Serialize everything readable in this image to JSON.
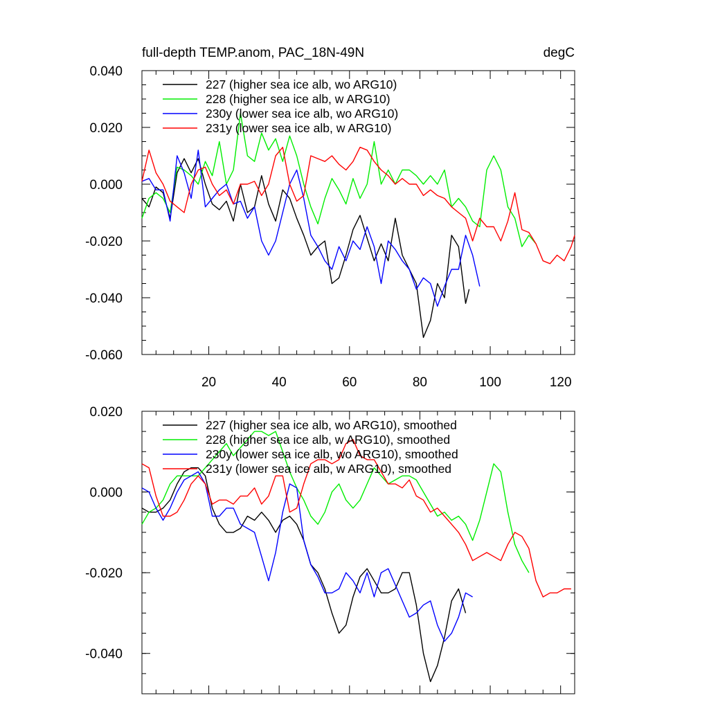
{
  "chart_data": [
    {
      "type": "line",
      "title": "full-depth TEMP.anom, PAC_18N-49N",
      "units": "degC",
      "xlim": [
        1,
        124
      ],
      "ylim": [
        -0.06,
        0.04
      ],
      "yticks": [
        -0.06,
        -0.04,
        -0.02,
        0.0,
        0.02,
        0.04
      ],
      "ytick_labels": [
        "-0.060",
        "-0.040",
        "-0.020",
        "0.000",
        "0.020",
        "0.040"
      ],
      "xticks": [
        20,
        40,
        60,
        80,
        100,
        120
      ],
      "xtick_labels": [
        "20",
        "40",
        "60",
        "80",
        "100",
        "120"
      ],
      "grid": false,
      "legend_position": "top-left",
      "series": [
        {
          "name": "227 (higher sea ice alb, wo ARG10)",
          "color": "#000000",
          "x": [
            1,
            3,
            5,
            7,
            9,
            11,
            13,
            15,
            17,
            19,
            21,
            23,
            25,
            27,
            29,
            31,
            33,
            35,
            37,
            39,
            41,
            43,
            45,
            47,
            49,
            51,
            53,
            55,
            57,
            59,
            61,
            63,
            65,
            67,
            69,
            71,
            73,
            75,
            77,
            79,
            81,
            83,
            85,
            87,
            89,
            91,
            93,
            94
          ],
          "y": [
            -0.005,
            -0.008,
            -0.001,
            -0.003,
            -0.012,
            0.004,
            0.009,
            0.004,
            0.009,
            0.0,
            -0.007,
            -0.009,
            -0.006,
            -0.013,
            0.0,
            -0.01,
            -0.008,
            0.003,
            -0.007,
            -0.013,
            -0.002,
            -0.005,
            -0.012,
            -0.018,
            -0.025,
            -0.022,
            -0.02,
            -0.035,
            -0.033,
            -0.025,
            -0.016,
            -0.011,
            -0.019,
            -0.027,
            -0.021,
            -0.027,
            -0.012,
            -0.025,
            -0.03,
            -0.035,
            -0.054,
            -0.048,
            -0.035,
            -0.04,
            -0.018,
            -0.022,
            -0.042,
            -0.037
          ]
        },
        {
          "name": "228 (higher sea ice alb, w ARG10)",
          "color": "#00ee00",
          "x": [
            1,
            3,
            5,
            7,
            9,
            11,
            13,
            15,
            17,
            19,
            21,
            23,
            25,
            27,
            29,
            31,
            33,
            35,
            37,
            39,
            41,
            43,
            45,
            47,
            49,
            51,
            53,
            55,
            57,
            59,
            61,
            63,
            65,
            67,
            69,
            71,
            73,
            75,
            77,
            79,
            81,
            83,
            85,
            87,
            89,
            91,
            93,
            95,
            97,
            99,
            101,
            103,
            105,
            107,
            109,
            111,
            113
          ],
          "y": [
            -0.012,
            -0.005,
            -0.003,
            -0.005,
            -0.01,
            0.006,
            0.005,
            0.003,
            0.0,
            0.008,
            0.003,
            0.015,
            0.0,
            0.005,
            0.025,
            0.01,
            0.008,
            0.018,
            0.012,
            0.016,
            0.008,
            0.017,
            0.01,
            0.0,
            -0.008,
            -0.014,
            -0.005,
            0.002,
            -0.002,
            -0.007,
            0.002,
            -0.005,
            0.0,
            0.015,
            0.0,
            0.005,
            0.0,
            0.005,
            0.005,
            0.003,
            0.0,
            0.003,
            0.0,
            0.005,
            -0.008,
            -0.005,
            -0.008,
            -0.013,
            -0.015,
            0.005,
            0.01,
            0.005,
            -0.008,
            -0.012,
            -0.022,
            -0.018,
            -0.021
          ]
        },
        {
          "name": "230y (lower sea ice alb, wo ARG10)",
          "color": "#0000ff",
          "x": [
            1,
            3,
            5,
            7,
            9,
            11,
            13,
            15,
            17,
            19,
            21,
            23,
            25,
            27,
            29,
            31,
            33,
            35,
            37,
            39,
            41,
            43,
            45,
            47,
            49,
            51,
            53,
            55,
            57,
            59,
            61,
            63,
            65,
            67,
            69,
            71,
            73,
            75,
            77,
            79,
            81,
            83,
            85,
            87,
            89,
            91,
            93,
            95,
            97
          ],
          "y": [
            0.001,
            0.002,
            -0.002,
            -0.002,
            -0.013,
            0.01,
            0.004,
            -0.005,
            0.012,
            -0.008,
            -0.005,
            -0.002,
            0.0,
            -0.007,
            -0.006,
            -0.012,
            -0.008,
            -0.02,
            -0.025,
            -0.02,
            -0.01,
            0.0,
            0.005,
            -0.005,
            -0.018,
            -0.022,
            -0.027,
            -0.03,
            -0.022,
            -0.027,
            -0.02,
            -0.023,
            -0.015,
            -0.022,
            -0.035,
            -0.02,
            -0.023,
            -0.027,
            -0.03,
            -0.037,
            -0.033,
            -0.035,
            -0.043,
            -0.036,
            -0.03,
            -0.03,
            -0.018,
            -0.025,
            -0.036
          ]
        },
        {
          "name": "231y (lower sea ice alb, w ARG10)",
          "color": "#ff0000",
          "x": [
            1,
            3,
            5,
            7,
            9,
            11,
            13,
            15,
            17,
            19,
            21,
            23,
            25,
            27,
            29,
            31,
            33,
            35,
            37,
            39,
            41,
            43,
            45,
            47,
            49,
            51,
            53,
            55,
            57,
            59,
            61,
            63,
            65,
            67,
            69,
            71,
            73,
            75,
            77,
            79,
            81,
            83,
            85,
            87,
            89,
            91,
            93,
            95,
            97,
            99,
            101,
            103,
            105,
            107,
            109,
            111,
            113,
            115,
            117,
            119,
            121,
            123,
            124
          ],
          "y": [
            0.001,
            0.012,
            0.004,
            0.0,
            -0.006,
            -0.008,
            -0.01,
            0.0,
            0.005,
            0.006,
            0.0,
            -0.004,
            -0.002,
            -0.007,
            0.0,
            0.0,
            0.001,
            -0.004,
            0.0,
            0.01,
            0.013,
            0.0,
            -0.006,
            -0.004,
            0.01,
            0.009,
            0.008,
            0.01,
            0.007,
            0.005,
            0.008,
            0.013,
            0.012,
            0.008,
            0.005,
            0.003,
            0.0,
            0.002,
            0.0,
            0.0,
            -0.004,
            -0.002,
            -0.004,
            -0.005,
            -0.008,
            -0.01,
            -0.012,
            -0.02,
            -0.012,
            -0.015,
            -0.015,
            -0.02,
            -0.013,
            -0.003,
            -0.016,
            -0.017,
            -0.021,
            -0.027,
            -0.028,
            -0.025,
            -0.027,
            -0.022,
            -0.018
          ]
        }
      ]
    },
    {
      "type": "line",
      "title": "",
      "units": "",
      "xlim": [
        1,
        124
      ],
      "ylim": [
        -0.05,
        0.02
      ],
      "yticks": [
        -0.04,
        -0.02,
        0.0,
        0.02
      ],
      "ytick_labels": [
        "-0.040",
        "-0.020",
        "0.000",
        "0.020"
      ],
      "xticks": [
        20,
        40,
        60,
        80,
        100,
        120
      ],
      "xtick_labels": [],
      "grid": false,
      "legend_position": "top-left",
      "series": [
        {
          "name": "227 (higher sea ice alb, wo ARG10), smoothed",
          "color": "#000000",
          "x": [
            1,
            3,
            5,
            7,
            9,
            11,
            13,
            15,
            17,
            19,
            21,
            23,
            25,
            27,
            29,
            31,
            33,
            35,
            37,
            39,
            41,
            43,
            45,
            47,
            49,
            51,
            53,
            55,
            57,
            59,
            61,
            63,
            65,
            67,
            69,
            71,
            73,
            75,
            77,
            79,
            81,
            83,
            85,
            87,
            89,
            91,
            93
          ],
          "y": [
            -0.004,
            -0.005,
            -0.005,
            -0.004,
            -0.002,
            0.002,
            0.005,
            0.006,
            0.006,
            0.004,
            -0.004,
            -0.008,
            -0.01,
            -0.01,
            -0.009,
            -0.006,
            -0.007,
            -0.005,
            -0.007,
            -0.01,
            -0.007,
            -0.006,
            -0.008,
            -0.012,
            -0.018,
            -0.02,
            -0.024,
            -0.03,
            -0.035,
            -0.033,
            -0.026,
            -0.021,
            -0.019,
            -0.022,
            -0.025,
            -0.025,
            -0.024,
            -0.02,
            -0.02,
            -0.028,
            -0.04,
            -0.047,
            -0.043,
            -0.036,
            -0.027,
            -0.024,
            -0.03
          ]
        },
        {
          "name": "228 (higher sea ice alb, w ARG10), smoothed",
          "color": "#00ee00",
          "x": [
            1,
            3,
            5,
            7,
            9,
            11,
            13,
            15,
            17,
            19,
            21,
            23,
            25,
            27,
            29,
            31,
            33,
            35,
            37,
            39,
            41,
            43,
            45,
            47,
            49,
            51,
            53,
            55,
            57,
            59,
            61,
            63,
            65,
            67,
            69,
            71,
            73,
            75,
            77,
            79,
            81,
            83,
            85,
            87,
            89,
            91,
            93,
            95,
            97,
            99,
            101,
            103,
            105,
            107,
            109,
            111
          ],
          "y": [
            -0.008,
            -0.005,
            -0.004,
            -0.002,
            0.002,
            0.004,
            0.004,
            0.004,
            0.004,
            0.006,
            0.008,
            0.01,
            0.012,
            0.009,
            0.011,
            0.013,
            0.015,
            0.015,
            0.014,
            0.015,
            0.01,
            0.005,
            0.001,
            -0.002,
            -0.006,
            -0.008,
            -0.005,
            0.0,
            0.002,
            -0.002,
            -0.004,
            -0.002,
            0.002,
            0.006,
            0.004,
            0.002,
            0.003,
            0.004,
            0.004,
            0.003,
            0.0,
            -0.003,
            -0.006,
            -0.005,
            -0.007,
            -0.006,
            -0.008,
            -0.012,
            -0.007,
            0.0,
            0.007,
            0.005,
            -0.005,
            -0.013,
            -0.017,
            -0.02
          ]
        },
        {
          "name": "230y (lower sea ice alb, wo ARG10), smoothed",
          "color": "#0000ff",
          "x": [
            1,
            3,
            5,
            7,
            9,
            11,
            13,
            15,
            17,
            19,
            21,
            23,
            25,
            27,
            29,
            31,
            33,
            35,
            37,
            39,
            41,
            43,
            45,
            47,
            49,
            51,
            53,
            55,
            57,
            59,
            61,
            63,
            65,
            67,
            69,
            71,
            73,
            75,
            77,
            79,
            81,
            83,
            85,
            87,
            89,
            91,
            93,
            95
          ],
          "y": [
            0.001,
            0.0,
            -0.004,
            -0.007,
            -0.004,
            0.0,
            0.003,
            0.004,
            0.005,
            0.002,
            -0.006,
            -0.006,
            -0.004,
            -0.004,
            -0.008,
            -0.009,
            -0.01,
            -0.016,
            -0.022,
            -0.015,
            -0.005,
            0.002,
            0.001,
            -0.012,
            -0.018,
            -0.021,
            -0.025,
            -0.025,
            -0.024,
            -0.02,
            -0.022,
            -0.025,
            -0.02,
            -0.026,
            -0.02,
            -0.019,
            -0.023,
            -0.027,
            -0.031,
            -0.03,
            -0.028,
            -0.027,
            -0.033,
            -0.037,
            -0.035,
            -0.031,
            -0.025,
            -0.026
          ]
        },
        {
          "name": "231y (lower sea ice alb, w ARG10), smoothed",
          "color": "#ff0000",
          "x": [
            1,
            3,
            5,
            7,
            9,
            11,
            13,
            15,
            17,
            19,
            21,
            23,
            25,
            27,
            29,
            31,
            33,
            35,
            37,
            39,
            41,
            43,
            45,
            47,
            49,
            51,
            53,
            55,
            57,
            59,
            61,
            63,
            65,
            67,
            69,
            71,
            73,
            75,
            77,
            79,
            81,
            83,
            85,
            87,
            89,
            91,
            93,
            95,
            97,
            99,
            101,
            103,
            105,
            107,
            109,
            111,
            113,
            115,
            117,
            119,
            121,
            123
          ],
          "y": [
            0.007,
            0.006,
            -0.001,
            -0.006,
            -0.006,
            -0.005,
            -0.002,
            0.002,
            0.004,
            0.002,
            -0.003,
            -0.002,
            -0.002,
            -0.003,
            -0.001,
            -0.001,
            0.001,
            -0.003,
            -0.001,
            0.004,
            0.004,
            -0.005,
            -0.004,
            0.002,
            0.007,
            0.008,
            0.008,
            0.007,
            0.008,
            0.012,
            0.013,
            0.009,
            0.008,
            0.008,
            0.005,
            0.002,
            0.002,
            0.001,
            0.003,
            -0.001,
            -0.002,
            -0.005,
            -0.004,
            -0.006,
            -0.008,
            -0.01,
            -0.013,
            -0.017,
            -0.016,
            -0.015,
            -0.016,
            -0.017,
            -0.013,
            -0.01,
            -0.011,
            -0.014,
            -0.022,
            -0.026,
            -0.025,
            -0.025,
            -0.024,
            -0.024
          ]
        }
      ]
    }
  ]
}
